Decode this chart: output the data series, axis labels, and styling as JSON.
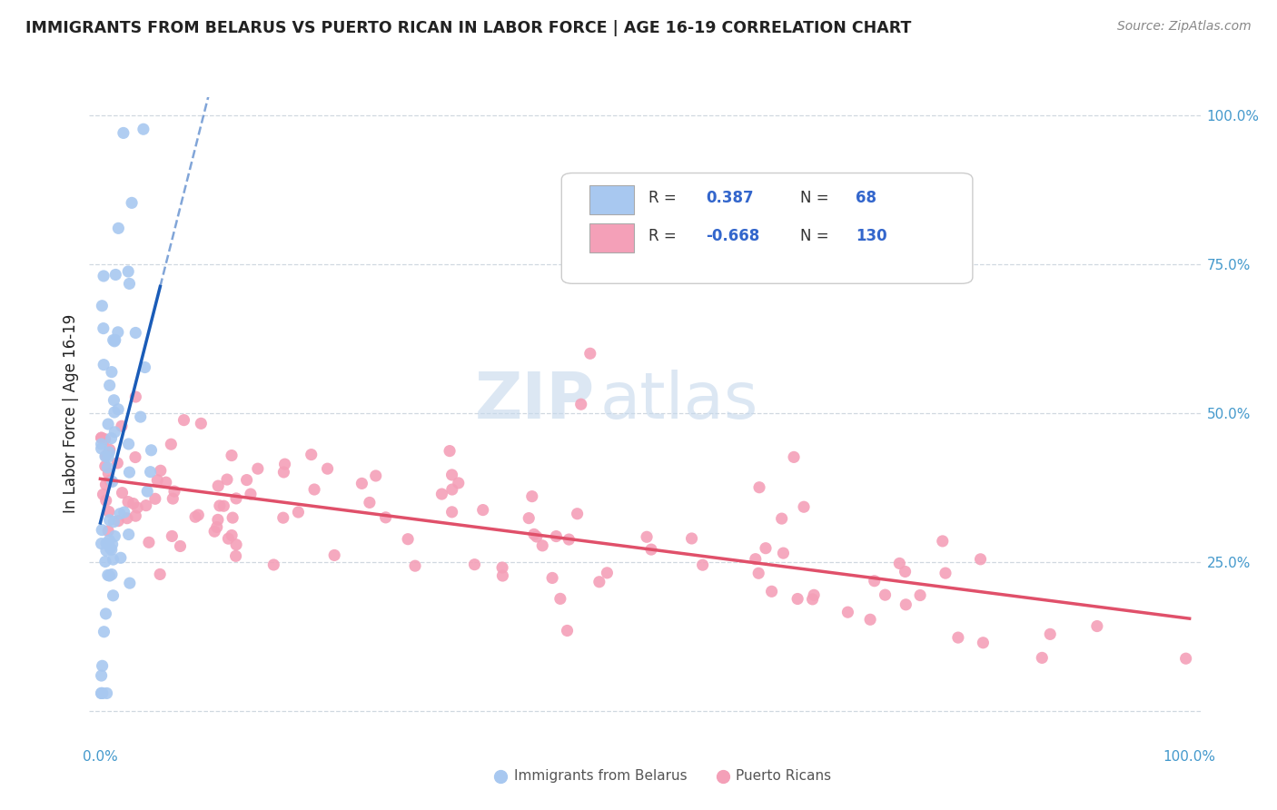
{
  "title": "IMMIGRANTS FROM BELARUS VS PUERTO RICAN IN LABOR FORCE | AGE 16-19 CORRELATION CHART",
  "source_text": "Source: ZipAtlas.com",
  "ylabel": "In Labor Force | Age 16-19",
  "r_belarus": 0.387,
  "n_belarus": 68,
  "r_puerto": -0.668,
  "n_puerto": 130,
  "legend_label_1": "Immigrants from Belarus",
  "legend_label_2": "Puerto Ricans",
  "color_belarus": "#a8c8f0",
  "color_puerto": "#f4a0b8",
  "line_color_belarus": "#1a5cb8",
  "line_color_puerto": "#e0506a",
  "watermark_zip": "ZIP",
  "watermark_atlas": "atlas",
  "title_color": "#222222",
  "source_color": "#888888",
  "label_color": "#4499cc",
  "legend_text_color": "#333333",
  "legend_value_color": "#3366cc",
  "grid_color": "#d0d8e0",
  "background_color": "#ffffff"
}
